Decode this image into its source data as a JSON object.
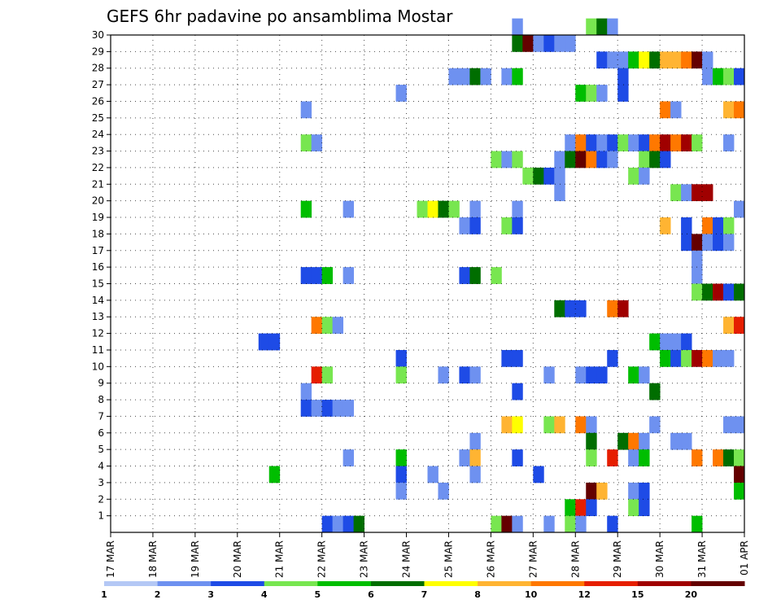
{
  "chart_data": {
    "type": "heatmap",
    "title": "GEFS 6hr padavine po ansamblima Mostar",
    "y_ticks": [
      "1",
      "2",
      "3",
      "4",
      "5",
      "6",
      "7",
      "8",
      "9",
      "10",
      "11",
      "12",
      "13",
      "14",
      "15",
      "16",
      "17",
      "18",
      "19",
      "20",
      "21",
      "22",
      "23",
      "24",
      "25",
      "26",
      "27",
      "28",
      "29",
      "30"
    ],
    "x_ticks": [
      "17 MAR",
      "18 MAR",
      "19 MAR",
      "20 MAR",
      "21 MAR",
      "22 MAR",
      "23 MAR",
      "24 MAR",
      "25 MAR",
      "26 MAR",
      "27 MAR",
      "28 MAR",
      "29 MAR",
      "30 MAR",
      "31 MAR",
      "01 APR"
    ],
    "x_steps": 60,
    "y_range": [
      0,
      30
    ],
    "grid": true,
    "legend": {
      "labels": [
        "1",
        "2",
        "3",
        "4",
        "5",
        "6",
        "7",
        "8",
        "10",
        "12",
        "15",
        "20"
      ],
      "colors": [
        "#b4c8f5",
        "#6e91f0",
        "#1e4be6",
        "#78e650",
        "#00be00",
        "#006e00",
        "#ffff00",
        "#ffb432",
        "#ff7800",
        "#e61e00",
        "#a00000",
        "#640000"
      ]
    },
    "cells": [
      [
        30,
        38,
        1
      ],
      [
        30,
        45,
        3
      ],
      [
        30,
        46,
        5
      ],
      [
        30,
        47,
        1
      ],
      [
        29,
        38,
        5
      ],
      [
        29,
        39,
        11
      ],
      [
        29,
        40,
        1
      ],
      [
        29,
        41,
        2
      ],
      [
        29,
        42,
        1
      ],
      [
        29,
        43,
        1
      ],
      [
        28,
        46,
        2
      ],
      [
        28,
        47,
        1
      ],
      [
        28,
        48,
        1
      ],
      [
        28,
        49,
        4
      ],
      [
        28,
        50,
        6
      ],
      [
        28,
        51,
        5
      ],
      [
        28,
        52,
        7
      ],
      [
        28,
        53,
        7
      ],
      [
        28,
        54,
        8
      ],
      [
        28,
        55,
        11
      ],
      [
        28,
        56,
        1
      ],
      [
        27,
        32,
        1
      ],
      [
        27,
        33,
        1
      ],
      [
        27,
        34,
        5
      ],
      [
        27,
        35,
        1
      ],
      [
        27,
        37,
        1
      ],
      [
        27,
        38,
        4
      ],
      [
        27,
        48,
        2
      ],
      [
        27,
        56,
        1
      ],
      [
        27,
        57,
        4
      ],
      [
        27,
        58,
        3
      ],
      [
        27,
        59,
        2
      ],
      [
        26,
        27,
        1
      ],
      [
        26,
        44,
        4
      ],
      [
        26,
        45,
        3
      ],
      [
        26,
        46,
        1
      ],
      [
        26,
        48,
        2
      ],
      [
        25,
        18,
        1
      ],
      [
        25,
        52,
        8
      ],
      [
        25,
        53,
        1
      ],
      [
        25,
        58,
        7
      ],
      [
        25,
        59,
        8
      ],
      [
        23,
        18,
        3
      ],
      [
        23,
        19,
        1
      ],
      [
        23,
        43,
        1
      ],
      [
        23,
        44,
        8
      ],
      [
        23,
        45,
        2
      ],
      [
        23,
        46,
        1
      ],
      [
        23,
        47,
        2
      ],
      [
        23,
        48,
        3
      ],
      [
        23,
        49,
        1
      ],
      [
        23,
        50,
        2
      ],
      [
        23,
        51,
        8
      ],
      [
        23,
        52,
        10
      ],
      [
        23,
        53,
        8
      ],
      [
        23,
        54,
        10
      ],
      [
        23,
        55,
        3
      ],
      [
        23,
        58,
        1
      ],
      [
        22,
        36,
        3
      ],
      [
        22,
        37,
        1
      ],
      [
        22,
        38,
        3
      ],
      [
        22,
        42,
        1
      ],
      [
        22,
        43,
        5
      ],
      [
        22,
        44,
        11
      ],
      [
        22,
        45,
        8
      ],
      [
        22,
        46,
        2
      ],
      [
        22,
        47,
        1
      ],
      [
        22,
        50,
        3
      ],
      [
        22,
        51,
        5
      ],
      [
        22,
        52,
        2
      ],
      [
        21,
        39,
        3
      ],
      [
        21,
        40,
        5
      ],
      [
        21,
        41,
        2
      ],
      [
        21,
        42,
        1
      ],
      [
        21,
        49,
        3
      ],
      [
        21,
        50,
        1
      ],
      [
        20,
        42,
        1
      ],
      [
        20,
        53,
        3
      ],
      [
        20,
        54,
        1
      ],
      [
        20,
        55,
        10
      ],
      [
        20,
        56,
        10
      ],
      [
        19,
        18,
        4
      ],
      [
        19,
        22,
        1
      ],
      [
        19,
        29,
        3
      ],
      [
        19,
        30,
        6
      ],
      [
        19,
        31,
        5
      ],
      [
        19,
        32,
        3
      ],
      [
        19,
        34,
        1
      ],
      [
        19,
        38,
        1
      ],
      [
        19,
        59,
        1
      ],
      [
        18,
        33,
        1
      ],
      [
        18,
        34,
        2
      ],
      [
        18,
        37,
        3
      ],
      [
        18,
        38,
        2
      ],
      [
        18,
        52,
        7
      ],
      [
        18,
        54,
        2
      ],
      [
        18,
        56,
        8
      ],
      [
        18,
        57,
        2
      ],
      [
        18,
        58,
        3
      ],
      [
        17,
        54,
        2
      ],
      [
        17,
        55,
        11
      ],
      [
        17,
        56,
        1
      ],
      [
        17,
        57,
        2
      ],
      [
        17,
        58,
        1
      ],
      [
        16,
        55,
        1
      ],
      [
        15,
        18,
        2
      ],
      [
        15,
        19,
        2
      ],
      [
        15,
        20,
        4
      ],
      [
        15,
        22,
        1
      ],
      [
        15,
        33,
        2
      ],
      [
        15,
        34,
        5
      ],
      [
        15,
        36,
        3
      ],
      [
        15,
        55,
        1
      ],
      [
        14,
        55,
        3
      ],
      [
        14,
        56,
        5
      ],
      [
        14,
        57,
        10
      ],
      [
        14,
        58,
        2
      ],
      [
        14,
        59,
        5
      ],
      [
        13,
        42,
        5
      ],
      [
        13,
        43,
        2
      ],
      [
        13,
        44,
        2
      ],
      [
        13,
        47,
        8
      ],
      [
        13,
        48,
        10
      ],
      [
        12,
        19,
        8
      ],
      [
        12,
        20,
        3
      ],
      [
        12,
        21,
        1
      ],
      [
        12,
        58,
        7
      ],
      [
        12,
        59,
        9
      ],
      [
        11,
        14,
        2
      ],
      [
        11,
        15,
        2
      ],
      [
        11,
        51,
        4
      ],
      [
        11,
        52,
        1
      ],
      [
        11,
        53,
        1
      ],
      [
        11,
        54,
        2
      ],
      [
        10,
        27,
        2
      ],
      [
        10,
        37,
        2
      ],
      [
        10,
        38,
        2
      ],
      [
        10,
        47,
        2
      ],
      [
        10,
        52,
        4
      ],
      [
        10,
        53,
        2
      ],
      [
        10,
        54,
        3
      ],
      [
        10,
        55,
        10
      ],
      [
        10,
        56,
        8
      ],
      [
        10,
        57,
        1
      ],
      [
        10,
        58,
        1
      ],
      [
        9,
        19,
        9
      ],
      [
        9,
        20,
        3
      ],
      [
        9,
        27,
        3
      ],
      [
        9,
        31,
        1
      ],
      [
        9,
        33,
        2
      ],
      [
        9,
        34,
        1
      ],
      [
        9,
        41,
        1
      ],
      [
        9,
        44,
        1
      ],
      [
        9,
        45,
        2
      ],
      [
        9,
        46,
        2
      ],
      [
        9,
        49,
        4
      ],
      [
        9,
        50,
        1
      ],
      [
        8,
        18,
        1
      ],
      [
        8,
        38,
        2
      ],
      [
        8,
        51,
        5
      ],
      [
        7,
        18,
        2
      ],
      [
        7,
        19,
        1
      ],
      [
        7,
        20,
        2
      ],
      [
        7,
        21,
        1
      ],
      [
        7,
        22,
        1
      ],
      [
        6,
        37,
        7
      ],
      [
        6,
        38,
        6
      ],
      [
        6,
        41,
        3
      ],
      [
        6,
        42,
        7
      ],
      [
        6,
        44,
        8
      ],
      [
        6,
        45,
        1
      ],
      [
        6,
        51,
        1
      ],
      [
        6,
        58,
        1
      ],
      [
        6,
        59,
        1
      ],
      [
        5,
        34,
        1
      ],
      [
        5,
        45,
        5
      ],
      [
        5,
        48,
        5
      ],
      [
        5,
        49,
        8
      ],
      [
        5,
        50,
        1
      ],
      [
        5,
        53,
        1
      ],
      [
        5,
        54,
        1
      ],
      [
        4,
        22,
        1
      ],
      [
        4,
        27,
        4
      ],
      [
        4,
        33,
        1
      ],
      [
        4,
        34,
        7
      ],
      [
        4,
        38,
        2
      ],
      [
        4,
        45,
        3
      ],
      [
        4,
        47,
        9
      ],
      [
        4,
        49,
        1
      ],
      [
        4,
        50,
        4
      ],
      [
        4,
        55,
        8
      ],
      [
        4,
        57,
        8
      ],
      [
        4,
        58,
        5
      ],
      [
        4,
        59,
        3
      ],
      [
        3,
        15,
        4
      ],
      [
        3,
        27,
        2
      ],
      [
        3,
        30,
        1
      ],
      [
        3,
        34,
        1
      ],
      [
        3,
        40,
        2
      ],
      [
        3,
        59,
        11
      ],
      [
        2,
        27,
        1
      ],
      [
        2,
        31,
        1
      ],
      [
        2,
        45,
        11
      ],
      [
        2,
        46,
        7
      ],
      [
        2,
        49,
        1
      ],
      [
        2,
        50,
        2
      ],
      [
        2,
        59,
        4
      ],
      [
        1,
        43,
        4
      ],
      [
        1,
        44,
        9
      ],
      [
        1,
        45,
        2
      ],
      [
        1,
        49,
        3
      ],
      [
        1,
        50,
        2
      ],
      [
        0,
        20,
        2
      ],
      [
        0,
        21,
        1
      ],
      [
        0,
        22,
        2
      ],
      [
        0,
        23,
        5
      ],
      [
        0,
        36,
        3
      ],
      [
        0,
        37,
        11
      ],
      [
        0,
        38,
        1
      ],
      [
        0,
        41,
        1
      ],
      [
        0,
        43,
        3
      ],
      [
        0,
        44,
        1
      ],
      [
        0,
        47,
        2
      ],
      [
        0,
        55,
        4
      ]
    ]
  }
}
